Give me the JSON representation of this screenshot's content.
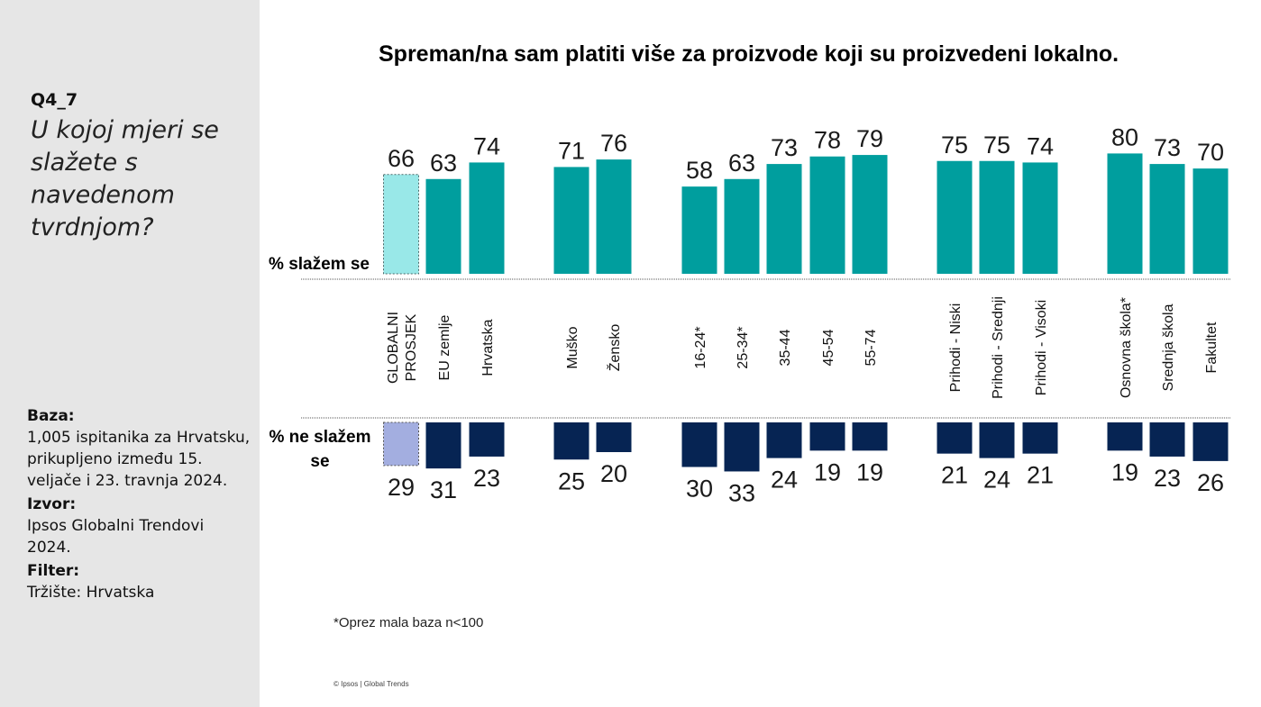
{
  "sidebar": {
    "code": "Q4_7",
    "question": "U kojoj mjeri se slažete s navedenom tvrdnjom?",
    "base_label": "Baza:",
    "base_text": "1,005 ispitanika za Hrvatsku, prikupljeno između 15. veljače i 23. travnja 2024.",
    "source_label": "Izvor:",
    "source_text": "Ipsos Globalni  Trendovi 2024.",
    "filter_label": "Filter:",
    "filter_text": "Tržište: Hrvatska"
  },
  "footnote": "*Oprez mala baza n<100",
  "copyright": "© Ipsos | Global Trends",
  "chart_data": {
    "type": "bar",
    "title": "Spreman/na sam platiti više za proizvode koji su proizvedeni lokalno.",
    "categories": [
      "GLOBALNI PROSJEK",
      "EU zemlje",
      "Hrvatska",
      "Muško",
      "Žensko",
      "16-24*",
      "25-34*",
      "35-44",
      "45-54",
      "55-74",
      "Prihodi - Niski",
      "Prihodi - Srednji",
      "Prihodi - Visoki",
      "Osnovna škola*",
      "Srednja škola",
      "Fakultet"
    ],
    "groups": [
      [
        0,
        1,
        2
      ],
      [
        3,
        4
      ],
      [
        5,
        6,
        7,
        8,
        9
      ],
      [
        10,
        11,
        12
      ],
      [
        13,
        14,
        15
      ]
    ],
    "series": [
      {
        "name": "% slažem se",
        "values": [
          66,
          63,
          74,
          71,
          76,
          58,
          63,
          73,
          78,
          79,
          75,
          75,
          74,
          80,
          73,
          70
        ]
      },
      {
        "name": "% ne slažem se",
        "values": [
          29,
          31,
          23,
          25,
          20,
          30,
          33,
          24,
          19,
          19,
          21,
          24,
          21,
          19,
          23,
          26
        ]
      }
    ],
    "colors": {
      "agree": "#009e9e",
      "agree_highlight": "#99e8e8",
      "disagree": "#062453",
      "disagree_highlight": "#a3aee0"
    },
    "highlight_index": 0
  }
}
